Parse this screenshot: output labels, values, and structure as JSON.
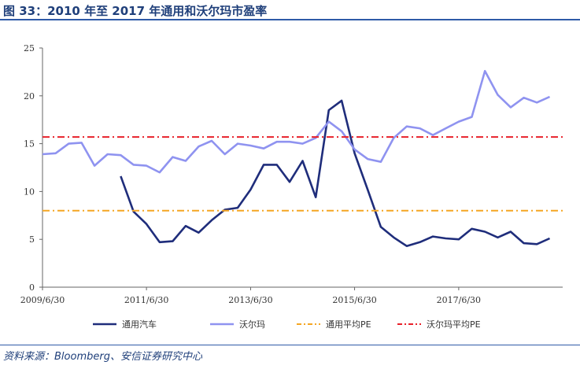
{
  "header": {
    "title": "图 33：2010 年至 2017 年通用和沃尔玛市盈率"
  },
  "footer": {
    "source": "资料来源：Bloomberg、安信证券研究中心"
  },
  "colors": {
    "gm": "#1f2d7b",
    "walmart": "#8f93f0",
    "gm_avg": "#f5a623",
    "walmart_avg": "#e8202a"
  },
  "chart_data": {
    "type": "line",
    "title": "",
    "xlabel": "",
    "ylabel": "",
    "x_axis": {
      "min": "2009-06-30",
      "max": "2019-06-30",
      "tick_dates": [
        "2009-06-30",
        "2011-06-30",
        "2013-06-30",
        "2015-06-30",
        "2017-06-30"
      ],
      "tick_labels": [
        "2009/6/30",
        "2011/6/30",
        "2013/6/30",
        "2015/6/30",
        "2017/6/30"
      ]
    },
    "ylim": [
      0,
      25
    ],
    "yticks": [
      0,
      5,
      10,
      15,
      20,
      25
    ],
    "grid": false,
    "legend_position": "bottom",
    "series": [
      {
        "name": "通用汽车",
        "color": "#1f2d7b",
        "style": "solid",
        "points": [
          [
            "2010-12-31",
            11.6
          ],
          [
            "2011-03-31",
            7.9
          ],
          [
            "2011-06-30",
            6.6
          ],
          [
            "2011-09-30",
            4.7
          ],
          [
            "2011-12-31",
            4.8
          ],
          [
            "2012-03-31",
            6.4
          ],
          [
            "2012-06-30",
            5.7
          ],
          [
            "2012-09-30",
            7.0
          ],
          [
            "2012-12-31",
            8.1
          ],
          [
            "2013-03-31",
            8.3
          ],
          [
            "2013-06-30",
            10.2
          ],
          [
            "2013-09-30",
            12.8
          ],
          [
            "2013-12-31",
            12.8
          ],
          [
            "2014-03-31",
            11.0
          ],
          [
            "2014-06-30",
            13.2
          ],
          [
            "2014-09-30",
            9.4
          ],
          [
            "2014-12-31",
            18.5
          ],
          [
            "2015-03-31",
            19.5
          ],
          [
            "2015-06-30",
            14.0
          ],
          [
            "2015-09-30",
            10.2
          ],
          [
            "2015-12-31",
            6.3
          ],
          [
            "2016-03-31",
            5.2
          ],
          [
            "2016-06-30",
            4.3
          ],
          [
            "2016-09-30",
            4.7
          ],
          [
            "2016-12-31",
            5.3
          ],
          [
            "2017-03-31",
            5.1
          ],
          [
            "2017-06-30",
            5.0
          ],
          [
            "2017-09-30",
            6.1
          ],
          [
            "2017-12-31",
            5.8
          ],
          [
            "2018-03-31",
            5.2
          ],
          [
            "2018-06-30",
            5.8
          ],
          [
            "2018-09-30",
            4.6
          ],
          [
            "2018-12-31",
            4.5
          ],
          [
            "2019-03-31",
            5.1
          ]
        ]
      },
      {
        "name": "沃尔玛",
        "color": "#8f93f0",
        "style": "solid",
        "points": [
          [
            "2009-06-30",
            13.9
          ],
          [
            "2009-09-30",
            14.0
          ],
          [
            "2009-12-31",
            15.0
          ],
          [
            "2010-03-31",
            15.1
          ],
          [
            "2010-06-30",
            12.7
          ],
          [
            "2010-09-30",
            13.9
          ],
          [
            "2010-12-31",
            13.8
          ],
          [
            "2011-03-31",
            12.8
          ],
          [
            "2011-06-30",
            12.7
          ],
          [
            "2011-09-30",
            12.0
          ],
          [
            "2011-12-31",
            13.6
          ],
          [
            "2012-03-31",
            13.2
          ],
          [
            "2012-06-30",
            14.7
          ],
          [
            "2012-09-30",
            15.3
          ],
          [
            "2012-12-31",
            13.9
          ],
          [
            "2013-03-31",
            15.0
          ],
          [
            "2013-06-30",
            14.8
          ],
          [
            "2013-09-30",
            14.5
          ],
          [
            "2013-12-31",
            15.2
          ],
          [
            "2014-03-31",
            15.2
          ],
          [
            "2014-06-30",
            15.0
          ],
          [
            "2014-09-30",
            15.6
          ],
          [
            "2014-12-31",
            17.3
          ],
          [
            "2015-03-31",
            16.3
          ],
          [
            "2015-06-30",
            14.4
          ],
          [
            "2015-09-30",
            13.4
          ],
          [
            "2015-12-31",
            13.1
          ],
          [
            "2016-03-31",
            15.6
          ],
          [
            "2016-06-30",
            16.8
          ],
          [
            "2016-09-30",
            16.6
          ],
          [
            "2016-12-31",
            15.9
          ],
          [
            "2017-03-31",
            16.6
          ],
          [
            "2017-06-30",
            17.3
          ],
          [
            "2017-09-30",
            17.8
          ],
          [
            "2017-12-31",
            22.6
          ],
          [
            "2018-03-31",
            20.1
          ],
          [
            "2018-06-30",
            18.8
          ],
          [
            "2018-09-30",
            19.8
          ],
          [
            "2018-12-31",
            19.3
          ],
          [
            "2019-03-31",
            19.9
          ]
        ]
      },
      {
        "name": "通用平均PE",
        "color": "#f5a623",
        "style": "dash-dot",
        "value": 8.0
      },
      {
        "name": "沃尔玛平均PE",
        "color": "#e8202a",
        "style": "dash-dot",
        "value": 15.7
      }
    ]
  }
}
